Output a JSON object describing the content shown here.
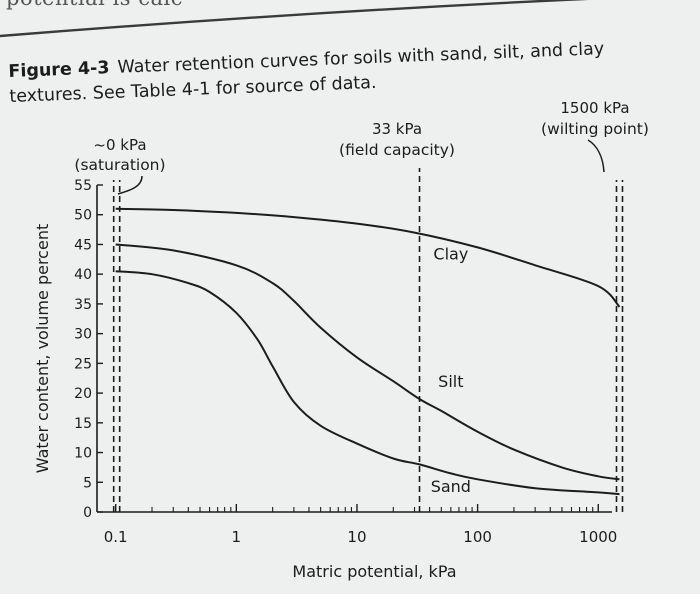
{
  "page": {
    "top_text": "potential is calc"
  },
  "caption": {
    "figure_number": "Figure 4-3",
    "text": "Water retention curves for soils with sand, silt, and clay textures. See Table 4-1 for source of data."
  },
  "chart_data": {
    "type": "line",
    "title": "",
    "xlabel": "Matric potential, kPa",
    "ylabel": "Water content, volume percent",
    "xscale": "log",
    "xlim": [
      0.07,
      1300
    ],
    "ylim": [
      0,
      55
    ],
    "x_ticks": [
      0.1,
      1,
      10,
      100,
      1000
    ],
    "x_tick_labels": [
      "0.1",
      "1",
      "10",
      "100",
      "1000"
    ],
    "y_ticks": [
      0,
      5,
      10,
      15,
      20,
      25,
      30,
      35,
      40,
      45,
      50,
      55
    ],
    "y_tick_labels": [
      "0",
      "5",
      "10",
      "15",
      "20",
      "25",
      "30",
      "35",
      "40",
      "45",
      "50",
      "55"
    ],
    "series": [
      {
        "name": "Clay",
        "x": [
          0.1,
          0.3,
          1,
          3,
          10,
          30,
          100,
          300,
          1000,
          1500
        ],
        "y": [
          51,
          50.8,
          50.3,
          49.6,
          48.5,
          47,
          44.5,
          41.5,
          38,
          34.5
        ]
      },
      {
        "name": "Silt",
        "x": [
          0.1,
          0.3,
          1,
          2,
          3,
          5,
          10,
          20,
          33,
          50,
          100,
          200,
          500,
          1000,
          1500
        ],
        "y": [
          45,
          44,
          41.5,
          38.5,
          35.5,
          31,
          26,
          22,
          19,
          17,
          13.5,
          10.5,
          7.5,
          6,
          5.5
        ]
      },
      {
        "name": "Sand",
        "x": [
          0.1,
          0.2,
          0.4,
          0.6,
          1,
          1.5,
          2,
          3,
          5,
          10,
          20,
          33,
          60,
          100,
          300,
          1000,
          1500
        ],
        "y": [
          40.5,
          40,
          38.5,
          37,
          33.5,
          29,
          24.5,
          18.5,
          14.5,
          11.5,
          9,
          8,
          6.5,
          5.5,
          4,
          3.3,
          3
        ]
      }
    ],
    "reference_lines": [
      {
        "x": 0.1,
        "label_lines": [
          "~0 kPa",
          "(saturation)"
        ]
      },
      {
        "x": 33,
        "label_lines": [
          "33 kPa",
          "(field capacity)"
        ]
      },
      {
        "x": 1500,
        "label_lines": [
          "1500 kPa",
          "(wilting point)"
        ]
      }
    ],
    "curve_labels": [
      {
        "series": "Clay",
        "text": "Clay"
      },
      {
        "series": "Silt",
        "text": "Silt"
      },
      {
        "series": "Sand",
        "text": "Sand"
      }
    ],
    "line_color": "#1c1c1c",
    "background_color": "#eef0ef"
  }
}
